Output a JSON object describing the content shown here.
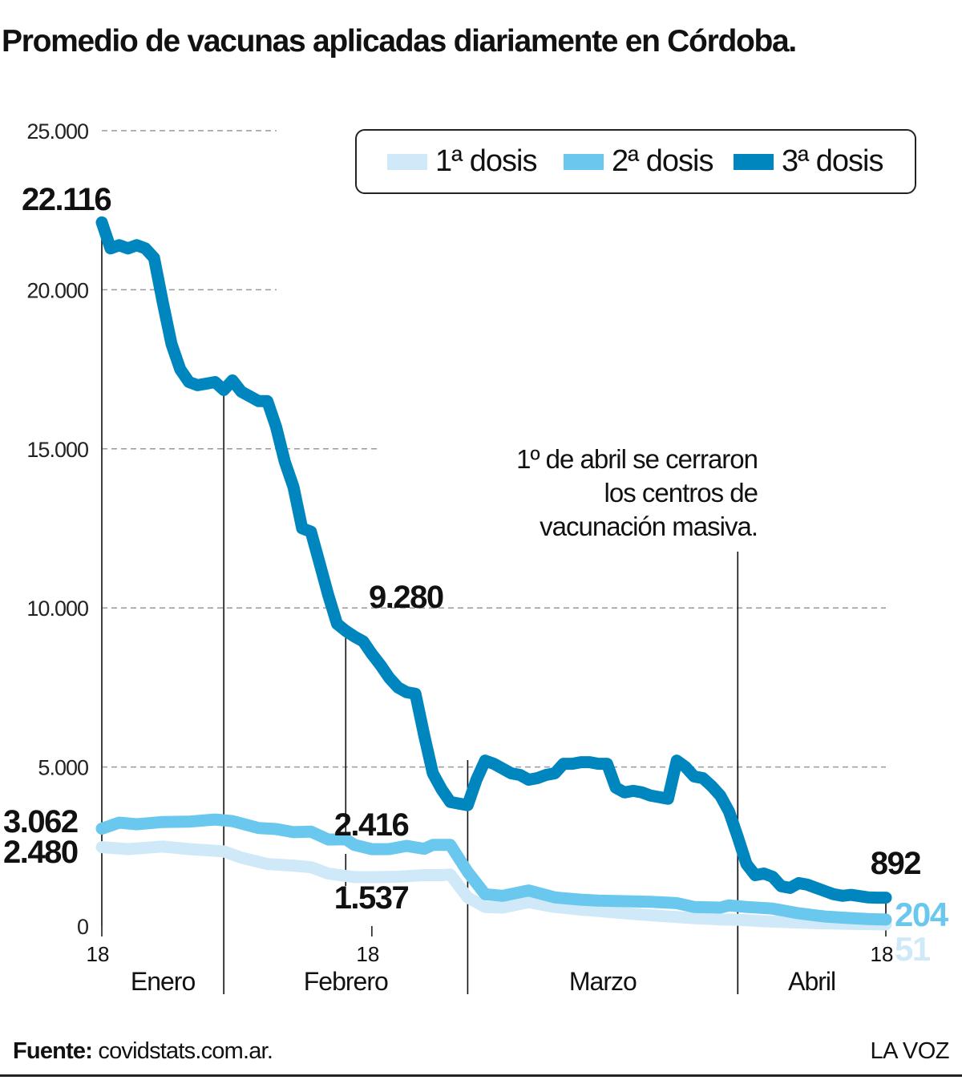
{
  "chart_data": {
    "type": "line",
    "title": "Promedio de vacunas aplicadas diariamente en Córdoba.",
    "ylim": [
      0,
      25000
    ],
    "yticks": [
      {
        "value": 25000,
        "label": "25.000"
      },
      {
        "value": 20000,
        "label": "20.000"
      },
      {
        "value": 15000,
        "label": "15.000"
      },
      {
        "value": 10000,
        "label": "10.000"
      },
      {
        "value": 5000,
        "label": "5.000"
      },
      {
        "value": 0,
        "label": "0"
      }
    ],
    "grid": true,
    "legend_position": "top-right",
    "x_start": "18 Enero",
    "x_end": "18 Abril",
    "x_days": 90,
    "xticks": [
      {
        "day": 0,
        "label": "18"
      },
      {
        "day": 31,
        "label": "18"
      },
      {
        "day": 90,
        "label": "18"
      }
    ],
    "months": [
      {
        "label": "Enero",
        "start_day": 0,
        "end_day": 14
      },
      {
        "label": "Febrero",
        "start_day": 14,
        "end_day": 42
      },
      {
        "label": "Marzo",
        "start_day": 42,
        "end_day": 73
      },
      {
        "label": "Abril",
        "start_day": 73,
        "end_day": 90
      }
    ],
    "series": [
      {
        "name": "1ª dosis",
        "color": "#cfe9f8",
        "end_label": "51",
        "x": [
          0,
          3,
          7,
          10,
          14,
          16,
          19,
          22,
          24,
          26,
          29,
          31,
          34,
          37,
          39,
          40,
          42,
          44,
          46,
          49,
          52,
          55,
          58,
          61,
          64,
          68,
          71,
          73,
          76,
          79,
          82,
          86,
          88,
          90
        ],
        "values": [
          2480,
          2420,
          2500,
          2420,
          2350,
          2150,
          1950,
          1900,
          1850,
          1650,
          1540,
          1537,
          1550,
          1600,
          1600,
          1620,
          900,
          600,
          580,
          750,
          600,
          520,
          450,
          380,
          320,
          250,
          210,
          200,
          150,
          120,
          90,
          70,
          60,
          51
        ]
      },
      {
        "name": "2ª dosis",
        "color": "#6ac7ee",
        "end_label": "204",
        "x": [
          0,
          2,
          4,
          7,
          10,
          13,
          15,
          18,
          20,
          22,
          24,
          26,
          28,
          29,
          31,
          33,
          35,
          37,
          38,
          40,
          42,
          44,
          46,
          49,
          52,
          55,
          57,
          60,
          63,
          66,
          68,
          71,
          72,
          74,
          77,
          80,
          83,
          86,
          88,
          90
        ],
        "values": [
          3062,
          3250,
          3200,
          3270,
          3280,
          3350,
          3300,
          3080,
          3050,
          2950,
          2970,
          2720,
          2730,
          2550,
          2416,
          2420,
          2520,
          2430,
          2550,
          2550,
          1700,
          1000,
          950,
          1120,
          900,
          830,
          800,
          780,
          760,
          720,
          600,
          580,
          650,
          600,
          550,
          400,
          300,
          250,
          220,
          204
        ]
      },
      {
        "name": "3ª dosis",
        "color": "#0086bf",
        "end_label": "892",
        "x": [
          0,
          1,
          2,
          3,
          4,
          5,
          6,
          7,
          8,
          9,
          10,
          11,
          12,
          13,
          14,
          15,
          16,
          17,
          18,
          19,
          20,
          21,
          22,
          23,
          24,
          25,
          26,
          27,
          28,
          29,
          30,
          31,
          32,
          33,
          34,
          35,
          36,
          37,
          38,
          39,
          40,
          41,
          42,
          43,
          44,
          45,
          46,
          47,
          48,
          49,
          50,
          51,
          52,
          53,
          54,
          55,
          56,
          57,
          58,
          59,
          60,
          61,
          62,
          63,
          64,
          65,
          66,
          67,
          68,
          69,
          70,
          71,
          72,
          73,
          74,
          75,
          76,
          77,
          78,
          79,
          80,
          81,
          82,
          83,
          84,
          85,
          86,
          87,
          88,
          89,
          90
        ],
        "values": [
          22116,
          21300,
          21400,
          21300,
          21400,
          21300,
          21000,
          19600,
          18300,
          17500,
          17100,
          17000,
          17050,
          17100,
          16850,
          17150,
          16800,
          16650,
          16500,
          16500,
          15700,
          14600,
          13800,
          12500,
          12400,
          11400,
          10400,
          9500,
          9280,
          9100,
          8950,
          8550,
          8200,
          7800,
          7500,
          7350,
          7300,
          6000,
          4800,
          4300,
          3900,
          3850,
          3800,
          4600,
          5200,
          5100,
          4950,
          4800,
          4750,
          4600,
          4650,
          4750,
          4800,
          5100,
          5100,
          5150,
          5150,
          5100,
          5100,
          4350,
          4200,
          4250,
          4200,
          4100,
          4050,
          4000,
          5200,
          5000,
          4700,
          4650,
          4400,
          4100,
          3600,
          2800,
          1950,
          1600,
          1650,
          1550,
          1250,
          1200,
          1350,
          1300,
          1200,
          1100,
          1000,
          950,
          980,
          940,
          900,
          892,
          892
        ]
      }
    ],
    "annotations": [
      {
        "series": 2,
        "day": 0,
        "value": 22116,
        "label": "22.116"
      },
      {
        "series": 2,
        "day": 28,
        "value": 9280,
        "label": "9.280"
      },
      {
        "series": 2,
        "day": 90,
        "value": 892,
        "label": "892"
      },
      {
        "series": 1,
        "day": 0,
        "value": 3062,
        "label": "3.062"
      },
      {
        "series": 0,
        "day": 0,
        "value": 2480,
        "label": "2.480"
      },
      {
        "series": 1,
        "day": 31,
        "value": 2416,
        "label": "2.416"
      },
      {
        "series": 0,
        "day": 31,
        "value": 1537,
        "label": "1.537"
      }
    ],
    "event_note": {
      "day": 73,
      "lines": [
        "1º de abril se cerraron",
        "los centros de",
        "vacunación masiva."
      ]
    }
  },
  "footer": {
    "source_label": "Fuente:",
    "source_value": "covidstats.com.ar.",
    "brand": "LA VOZ"
  }
}
